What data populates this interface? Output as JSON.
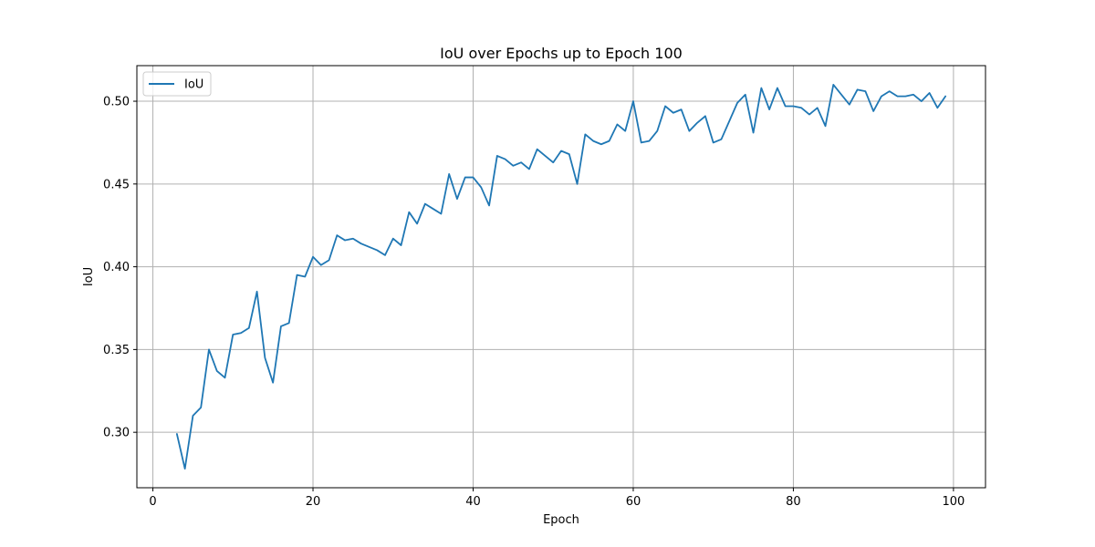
{
  "chart_data": {
    "type": "line",
    "title": "IoU over Epochs up to Epoch 100",
    "xlabel": "Epoch",
    "ylabel": "IoU",
    "xlim": [
      -2.0,
      104.0
    ],
    "ylim": [
      0.2665,
      0.5215
    ],
    "xticks": [
      0,
      20,
      40,
      60,
      80,
      100
    ],
    "yticks": [
      0.3,
      0.35,
      0.4,
      0.45,
      0.5
    ],
    "xtick_labels": [
      "0",
      "20",
      "40",
      "60",
      "80",
      "100"
    ],
    "ytick_labels": [
      "0.30",
      "0.35",
      "0.40",
      "0.45",
      "0.50"
    ],
    "grid": true,
    "legend_position": "top-left",
    "series": [
      {
        "name": "IoU",
        "color": "#1f77b4",
        "x": [
          3,
          4,
          5,
          6,
          7,
          8,
          9,
          10,
          11,
          12,
          13,
          14,
          15,
          16,
          17,
          18,
          19,
          20,
          21,
          22,
          23,
          24,
          25,
          26,
          27,
          28,
          29,
          30,
          31,
          32,
          33,
          34,
          35,
          36,
          37,
          38,
          39,
          40,
          41,
          42,
          43,
          44,
          45,
          46,
          47,
          48,
          49,
          50,
          51,
          52,
          53,
          54,
          55,
          56,
          57,
          58,
          59,
          60,
          61,
          62,
          63,
          64,
          65,
          66,
          67,
          68,
          69,
          70,
          71,
          72,
          73,
          74,
          75,
          76,
          77,
          78,
          79,
          80,
          81,
          82,
          83,
          84,
          85,
          86,
          87,
          88,
          89,
          90,
          91,
          92,
          93,
          94,
          95,
          96,
          97,
          98,
          99
        ],
        "y": [
          0.299,
          0.278,
          0.31,
          0.315,
          0.35,
          0.337,
          0.333,
          0.359,
          0.36,
          0.363,
          0.385,
          0.345,
          0.33,
          0.364,
          0.366,
          0.395,
          0.394,
          0.406,
          0.401,
          0.404,
          0.419,
          0.416,
          0.417,
          0.414,
          0.412,
          0.41,
          0.407,
          0.417,
          0.413,
          0.433,
          0.426,
          0.438,
          0.435,
          0.432,
          0.456,
          0.441,
          0.454,
          0.454,
          0.448,
          0.437,
          0.467,
          0.465,
          0.461,
          0.463,
          0.459,
          0.471,
          0.467,
          0.463,
          0.47,
          0.468,
          0.45,
          0.48,
          0.476,
          0.474,
          0.476,
          0.486,
          0.482,
          0.5,
          0.475,
          0.476,
          0.482,
          0.497,
          0.493,
          0.495,
          0.482,
          0.487,
          0.491,
          0.475,
          0.477,
          0.488,
          0.499,
          0.504,
          0.481,
          0.508,
          0.495,
          0.508,
          0.497,
          0.497,
          0.496,
          0.492,
          0.496,
          0.485,
          0.51,
          0.504,
          0.498,
          0.507,
          0.506,
          0.494,
          0.503,
          0.506,
          0.503,
          0.503,
          0.504,
          0.5,
          0.505,
          0.496,
          0.503
        ]
      }
    ]
  }
}
